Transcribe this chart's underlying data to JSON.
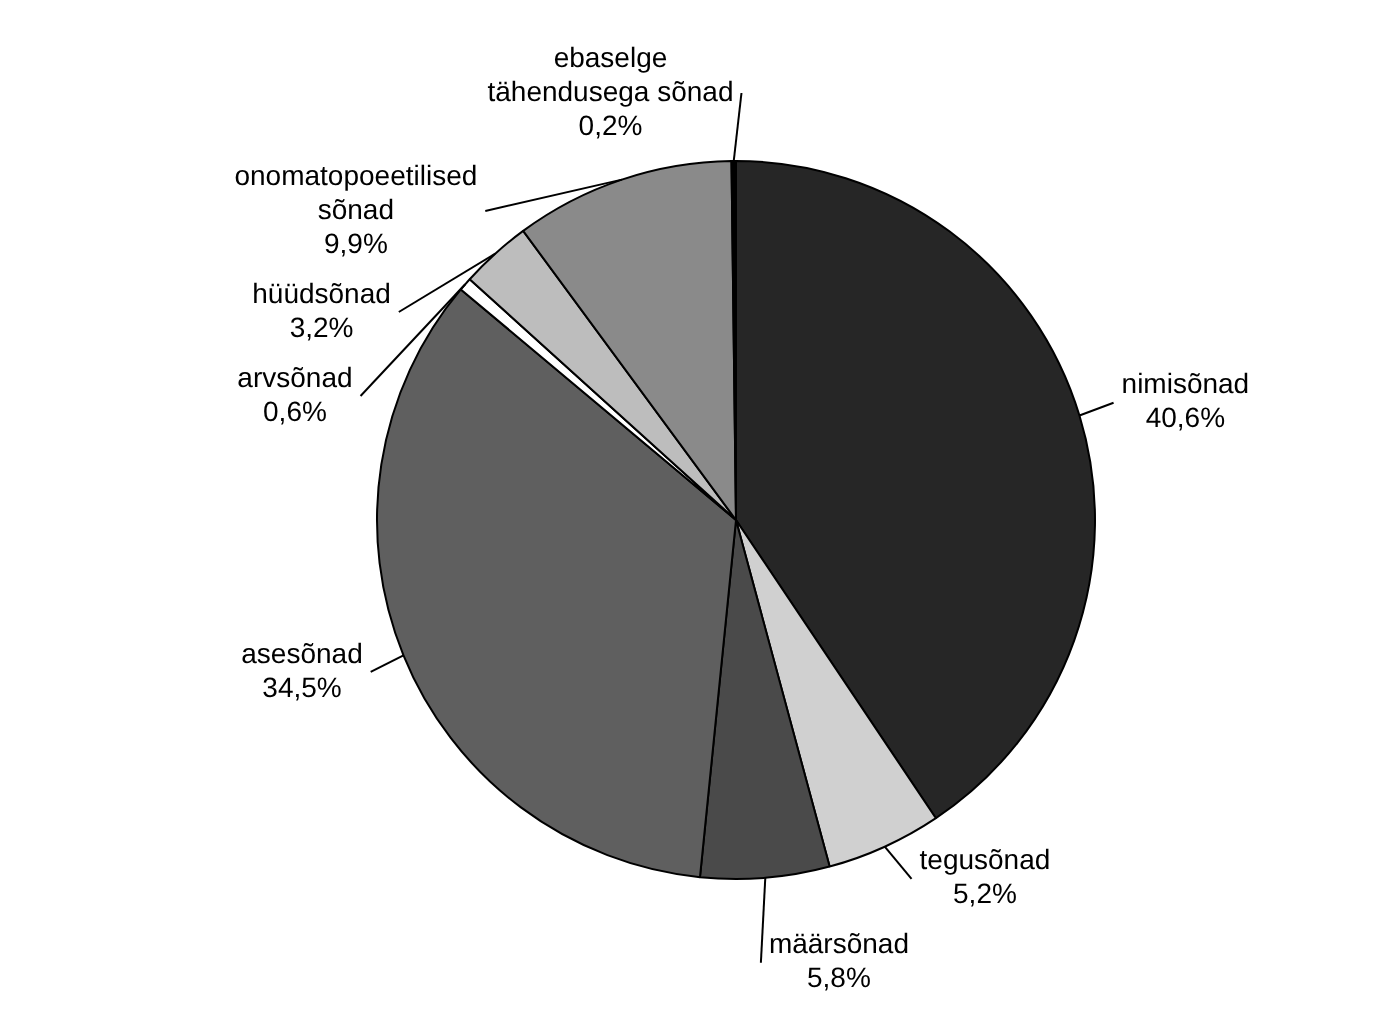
{
  "chart_data": {
    "type": "pie",
    "categories": [
      "nimisõnad",
      "tegusõnad",
      "määrsõnad",
      "asesõnad",
      "arvsõnad",
      "hüüdsõnad",
      "onomatopoeetilised sõnad",
      "ebaselge tähendusega sõnad"
    ],
    "values": [
      40.6,
      5.2,
      5.8,
      34.5,
      0.6,
      3.2,
      9.9,
      0.2
    ],
    "value_labels": [
      "40,6%",
      "5,2%",
      "5,8%",
      "34,5%",
      "0,6%",
      "3,2%",
      "9,9%",
      "0,2%"
    ],
    "colors": [
      "#262626",
      "#d0d0d0",
      "#4a4a4a",
      "#5f5f5f",
      "#ffffff",
      "#bdbdbd",
      "#8a8a8a",
      "#000000"
    ],
    "legend": false
  }
}
